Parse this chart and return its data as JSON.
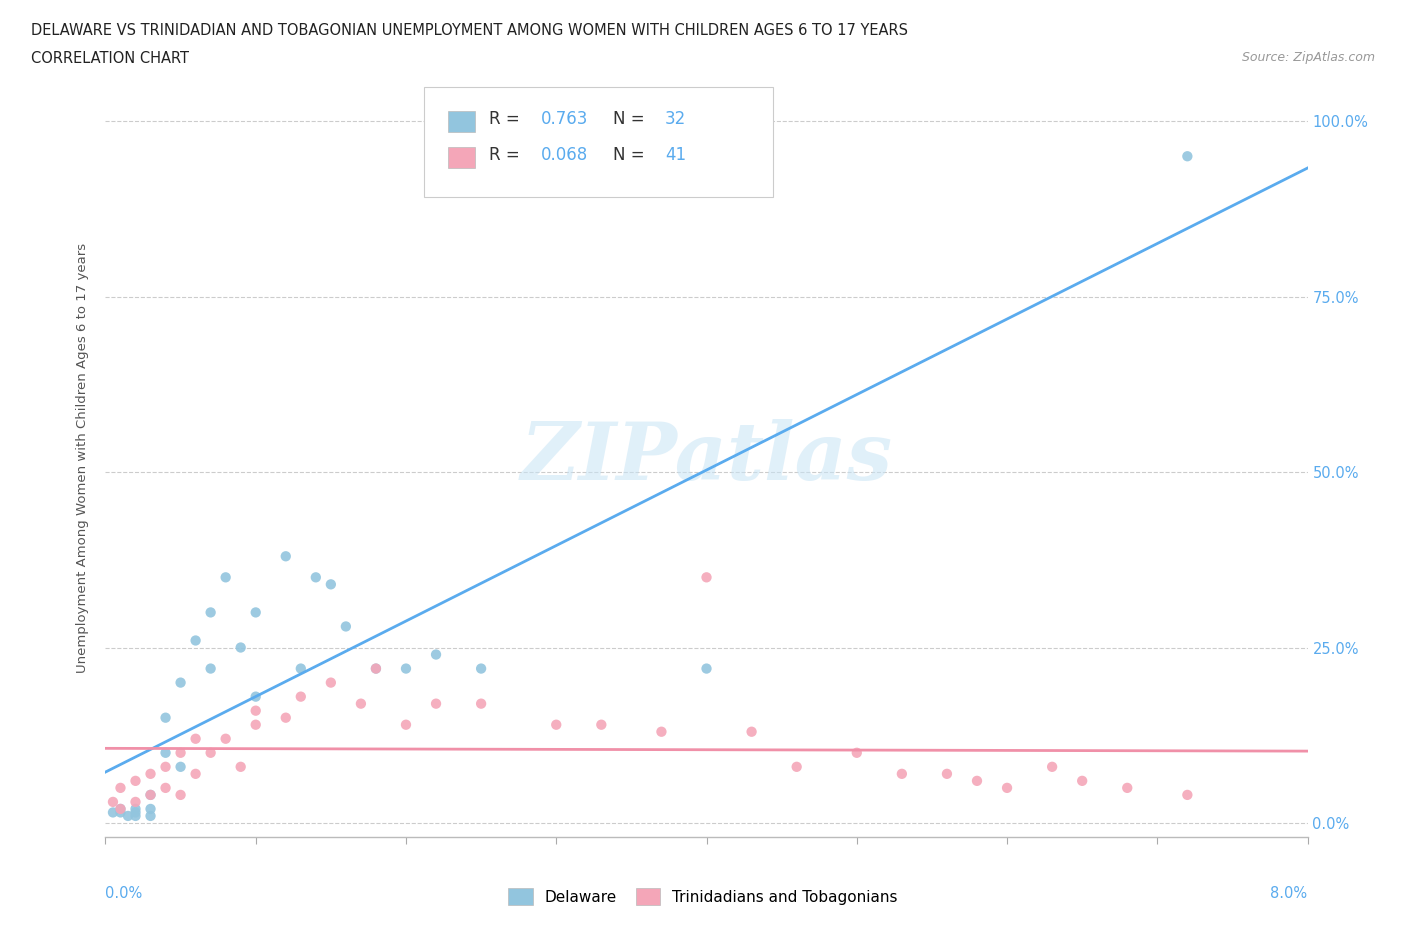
{
  "title_line1": "DELAWARE VS TRINIDADIAN AND TOBAGONIAN UNEMPLOYMENT AMONG WOMEN WITH CHILDREN AGES 6 TO 17 YEARS",
  "title_line2": "CORRELATION CHART",
  "source": "Source: ZipAtlas.com",
  "ylabel": "Unemployment Among Women with Children Ages 6 to 17 years",
  "watermark": "ZIPatlas",
  "legend_r1": "R =  0.763   N = 32",
  "legend_r2": "R =  0.068   N = 41",
  "delaware_color": "#92c5de",
  "trinidad_color": "#f4a6b8",
  "delaware_line_color": "#5aabee",
  "trinidad_line_color": "#f090a8",
  "ytick_labels": [
    "0.0%",
    "25.0%",
    "50.0%",
    "75.0%",
    "100.0%"
  ],
  "ytick_values": [
    0.0,
    0.25,
    0.5,
    0.75,
    1.0
  ],
  "xlim": [
    0.0,
    0.08
  ],
  "ylim": [
    -0.02,
    1.06
  ],
  "delaware_x": [
    0.0005,
    0.001,
    0.001,
    0.0015,
    0.002,
    0.002,
    0.002,
    0.003,
    0.003,
    0.003,
    0.004,
    0.004,
    0.005,
    0.005,
    0.006,
    0.007,
    0.007,
    0.008,
    0.009,
    0.01,
    0.01,
    0.012,
    0.013,
    0.014,
    0.015,
    0.016,
    0.018,
    0.02,
    0.022,
    0.025,
    0.04,
    0.072
  ],
  "delaware_y": [
    0.015,
    0.015,
    0.02,
    0.01,
    0.01,
    0.015,
    0.02,
    0.01,
    0.02,
    0.04,
    0.1,
    0.15,
    0.08,
    0.2,
    0.26,
    0.3,
    0.22,
    0.35,
    0.25,
    0.3,
    0.18,
    0.38,
    0.22,
    0.35,
    0.34,
    0.28,
    0.22,
    0.22,
    0.24,
    0.22,
    0.22,
    0.95
  ],
  "trinidad_x": [
    0.0005,
    0.001,
    0.001,
    0.002,
    0.002,
    0.003,
    0.003,
    0.004,
    0.004,
    0.005,
    0.005,
    0.006,
    0.006,
    0.007,
    0.008,
    0.009,
    0.01,
    0.01,
    0.012,
    0.013,
    0.015,
    0.017,
    0.018,
    0.02,
    0.022,
    0.025,
    0.03,
    0.033,
    0.037,
    0.04,
    0.043,
    0.046,
    0.05,
    0.053,
    0.056,
    0.058,
    0.06,
    0.063,
    0.065,
    0.068,
    0.072
  ],
  "trinidad_y": [
    0.03,
    0.02,
    0.05,
    0.03,
    0.06,
    0.04,
    0.07,
    0.05,
    0.08,
    0.04,
    0.1,
    0.07,
    0.12,
    0.1,
    0.12,
    0.08,
    0.14,
    0.16,
    0.15,
    0.18,
    0.2,
    0.17,
    0.22,
    0.14,
    0.17,
    0.17,
    0.14,
    0.14,
    0.13,
    0.35,
    0.13,
    0.08,
    0.1,
    0.07,
    0.07,
    0.06,
    0.05,
    0.08,
    0.06,
    0.05,
    0.04
  ]
}
